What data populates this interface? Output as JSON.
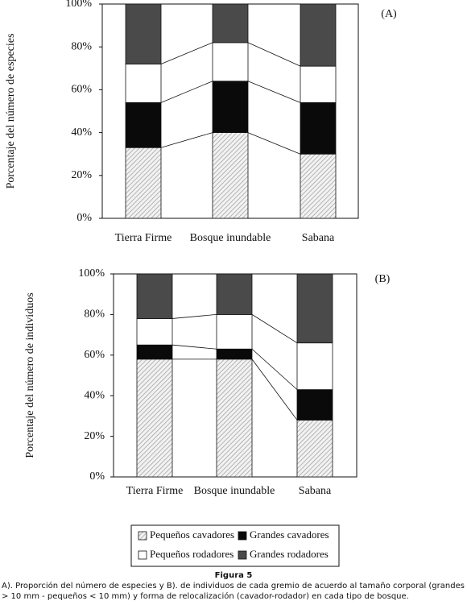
{
  "chart_data": [
    {
      "type": "stacked_bar",
      "label": "(A)",
      "ylabel": "Porcentaje del número de especies",
      "categories": [
        "Tierra Firme",
        "Bosque inundable",
        "Sabana"
      ],
      "series": [
        {
          "name": "Pequeños cavadores",
          "color": "#bdbdbd",
          "hatch": true,
          "values": [
            33,
            40,
            30
          ]
        },
        {
          "name": "Grandes cavadores",
          "color": "#0a0a0a",
          "values": [
            21,
            24,
            24
          ]
        },
        {
          "name": "Pequeños rodadores",
          "color": "#ffffff",
          "values": [
            18,
            18,
            17
          ]
        },
        {
          "name": "Grandes rodadores",
          "color": "#4a4a4a",
          "values": [
            28,
            18,
            29
          ]
        }
      ],
      "ylim": [
        0,
        100
      ],
      "yticks": [
        {
          "value": 0,
          "label": "0%"
        },
        {
          "value": 20,
          "label": "20%"
        },
        {
          "value": 40,
          "label": "40%"
        },
        {
          "value": 60,
          "label": "60%"
        },
        {
          "value": 80,
          "label": "80%"
        },
        {
          "value": 100,
          "label": "100%"
        }
      ]
    },
    {
      "type": "stacked_bar",
      "label": "(B)",
      "ylabel": "Porcentaje del número de individuos",
      "categories": [
        "Tierra Firme",
        "Bosque inundable",
        "Sabana"
      ],
      "series": [
        {
          "color": "#bdbdbd",
          "hatch": true,
          "values": [
            58,
            58,
            28
          ]
        },
        {
          "color": "#0a0a0a",
          "values": [
            7,
            5,
            15
          ]
        },
        {
          "color": "#ffffff",
          "values": [
            13,
            17,
            23
          ]
        },
        {
          "color": "#4a4a4a",
          "values": [
            22,
            20,
            34
          ]
        }
      ],
      "ylim": [
        0,
        100
      ],
      "yticks": [
        {
          "value": 0,
          "label": "0%"
        },
        {
          "value": 20,
          "label": "20%"
        },
        {
          "value": 40,
          "label": "40%"
        },
        {
          "value": 60,
          "label": "60%"
        },
        {
          "value": 80,
          "label": "80%"
        },
        {
          "value": 100,
          "label": "100%"
        }
      ]
    }
  ],
  "caption": {
    "figure": "Figura 5",
    "text": "A). Proporción del número de especies y B). de individuos de cada gremio de acuerdo al tamaño corporal (grandes > 10 mm - pequeños < 10 mm) y forma de relocalización (cavador-rodador) en cada tipo de bosque."
  }
}
